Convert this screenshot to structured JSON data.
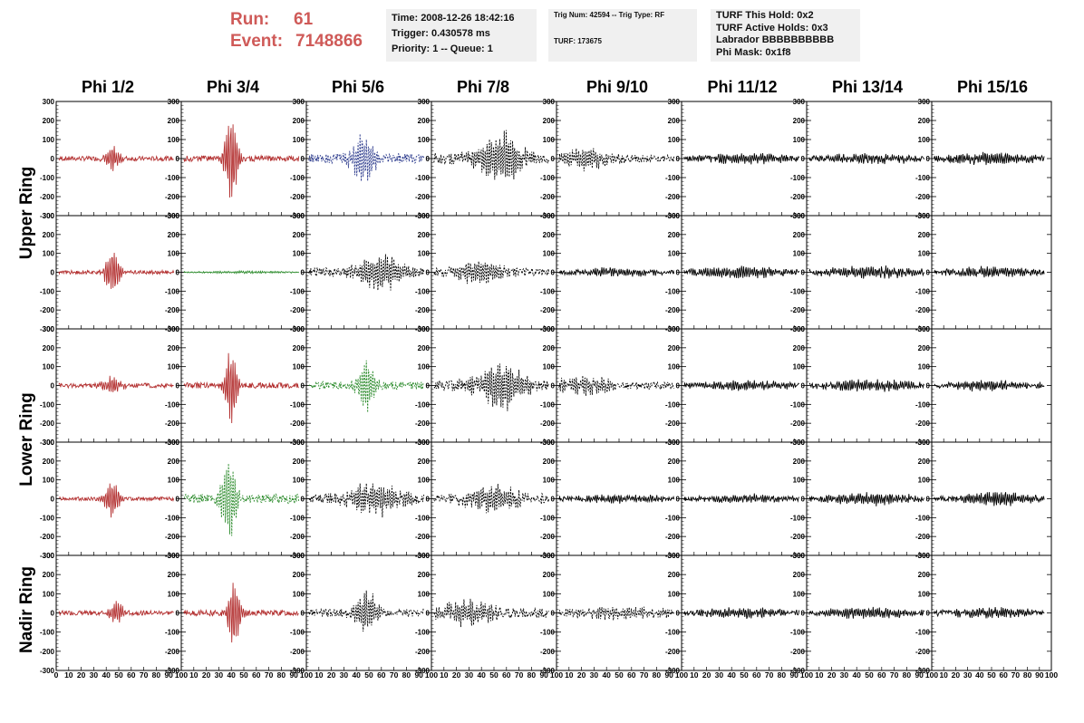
{
  "header": {
    "run_label": "Run:",
    "run_value": "61",
    "event_label": "Event:",
    "event_value": "7148866",
    "time_line": "Time: 2008-12-26 18:42:16",
    "trigger_line": "Trigger: 0.430578 ms",
    "priority_line": "Priority: 1 -- Queue: 1",
    "trig_num_line": "Trig Num: 42594 -- Trig Type: RF",
    "turf_line": "TURF: 173675",
    "turf_hold_line": "TURF This Hold: 0x2",
    "turf_active_line": "TURF Active Holds: 0x3",
    "labrador_line": "Labrador BBBBBBBBBB",
    "phi_mask_line": "Phi Mask: 0x1f8"
  },
  "columns": [
    "Phi 1/2",
    "Phi 3/4",
    "Phi 5/6",
    "Phi 7/8",
    "Phi 9/10",
    "Phi 11/12",
    "Phi 13/14",
    "Phi 15/16"
  ],
  "row_groups": [
    "Upper Ring",
    "Lower Ring",
    "Nadir Ring"
  ],
  "colors": {
    "red": "#b33030",
    "blue": "#2b3a8c",
    "green": "#2a8a2a",
    "black": "#000000"
  },
  "chart_data": {
    "type": "line",
    "rows": 5,
    "cols": 8,
    "xlim": [
      0,
      100
    ],
    "ylim": [
      -300,
      300
    ],
    "yticks": [
      -300,
      -200,
      -100,
      0,
      100,
      200,
      300
    ],
    "xticks_first": [
      "0",
      "10",
      "20",
      "30",
      "40",
      "50",
      "60",
      "70",
      "80",
      "90",
      "100"
    ],
    "xticks_other": [
      "10",
      "20",
      "30",
      "40",
      "50",
      "60",
      "70",
      "80",
      "90",
      "100"
    ],
    "panels": [
      [
        {
          "color": "red",
          "style": "solid",
          "center": 45,
          "peak": 70,
          "width": 6,
          "noise": 12
        },
        {
          "color": "red",
          "style": "solid",
          "center": 40,
          "peak": 300,
          "width": 5,
          "noise": 15
        },
        {
          "color": "blue",
          "style": "dashed",
          "center": 45,
          "peak": 140,
          "width": 10,
          "noise": 25
        },
        {
          "color": "black",
          "style": "dashed",
          "center": 55,
          "peak": 150,
          "width": 18,
          "noise": 30
        },
        {
          "color": "black",
          "style": "dashed",
          "center": 20,
          "peak": 60,
          "width": 25,
          "noise": 20
        },
        {
          "color": "black",
          "style": "solid",
          "center": 50,
          "peak": 25,
          "width": 40,
          "noise": 12
        },
        {
          "color": "black",
          "style": "solid",
          "center": 50,
          "peak": 25,
          "width": 40,
          "noise": 12
        },
        {
          "color": "black",
          "style": "solid",
          "center": 50,
          "peak": 30,
          "width": 40,
          "noise": 12
        }
      ],
      [
        {
          "color": "red",
          "style": "solid",
          "center": 45,
          "peak": 140,
          "width": 6,
          "noise": 10
        },
        {
          "color": "green",
          "style": "solid",
          "center": 50,
          "peak": 5,
          "width": 40,
          "noise": 3
        },
        {
          "color": "black",
          "style": "dashed",
          "center": 60,
          "peak": 100,
          "width": 20,
          "noise": 25
        },
        {
          "color": "black",
          "style": "dashed",
          "center": 40,
          "peak": 70,
          "width": 20,
          "noise": 20
        },
        {
          "color": "black",
          "style": "solid",
          "center": 50,
          "peak": 20,
          "width": 40,
          "noise": 10
        },
        {
          "color": "black",
          "style": "solid",
          "center": 50,
          "peak": 30,
          "width": 40,
          "noise": 12
        },
        {
          "color": "black",
          "style": "solid",
          "center": 50,
          "peak": 30,
          "width": 40,
          "noise": 12
        },
        {
          "color": "black",
          "style": "solid",
          "center": 50,
          "peak": 25,
          "width": 40,
          "noise": 12
        }
      ],
      [
        {
          "color": "red",
          "style": "solid",
          "center": 45,
          "peak": 50,
          "width": 8,
          "noise": 12
        },
        {
          "color": "red",
          "style": "solid",
          "center": 40,
          "peak": 240,
          "width": 5,
          "noise": 15
        },
        {
          "color": "green",
          "style": "dashed",
          "center": 48,
          "peak": 150,
          "width": 8,
          "noise": 20
        },
        {
          "color": "black",
          "style": "dashed",
          "center": 55,
          "peak": 130,
          "width": 20,
          "noise": 30
        },
        {
          "color": "black",
          "style": "dashed",
          "center": 20,
          "peak": 50,
          "width": 25,
          "noise": 20
        },
        {
          "color": "black",
          "style": "solid",
          "center": 50,
          "peak": 25,
          "width": 40,
          "noise": 10
        },
        {
          "color": "black",
          "style": "solid",
          "center": 50,
          "peak": 30,
          "width": 40,
          "noise": 12
        },
        {
          "color": "black",
          "style": "solid",
          "center": 50,
          "peak": 25,
          "width": 40,
          "noise": 12
        }
      ],
      [
        {
          "color": "red",
          "style": "solid",
          "center": 45,
          "peak": 110,
          "width": 6,
          "noise": 10
        },
        {
          "color": "green",
          "style": "dashed",
          "center": 38,
          "peak": 260,
          "width": 6,
          "noise": 25
        },
        {
          "color": "black",
          "style": "dashed",
          "center": 55,
          "peak": 80,
          "width": 25,
          "noise": 25
        },
        {
          "color": "black",
          "style": "dashed",
          "center": 50,
          "peak": 70,
          "width": 25,
          "noise": 25
        },
        {
          "color": "black",
          "style": "solid",
          "center": 50,
          "peak": 20,
          "width": 40,
          "noise": 10
        },
        {
          "color": "black",
          "style": "solid",
          "center": 50,
          "peak": 20,
          "width": 40,
          "noise": 10
        },
        {
          "color": "black",
          "style": "solid",
          "center": 50,
          "peak": 30,
          "width": 40,
          "noise": 12
        },
        {
          "color": "black",
          "style": "solid",
          "center": 55,
          "peak": 40,
          "width": 30,
          "noise": 12
        }
      ],
      [
        {
          "color": "red",
          "style": "solid",
          "center": 48,
          "peak": 70,
          "width": 6,
          "noise": 12
        },
        {
          "color": "red",
          "style": "solid",
          "center": 42,
          "peak": 230,
          "width": 5,
          "noise": 15
        },
        {
          "color": "black",
          "style": "dashed",
          "center": 48,
          "peak": 110,
          "width": 10,
          "noise": 20
        },
        {
          "color": "black",
          "style": "dashed",
          "center": 30,
          "peak": 60,
          "width": 25,
          "noise": 25
        },
        {
          "color": "black",
          "style": "dashed",
          "center": 50,
          "peak": 30,
          "width": 40,
          "noise": 15
        },
        {
          "color": "black",
          "style": "solid",
          "center": 50,
          "peak": 25,
          "width": 40,
          "noise": 12
        },
        {
          "color": "black",
          "style": "solid",
          "center": 50,
          "peak": 30,
          "width": 40,
          "noise": 12
        },
        {
          "color": "black",
          "style": "solid",
          "center": 50,
          "peak": 25,
          "width": 40,
          "noise": 12
        }
      ]
    ]
  }
}
